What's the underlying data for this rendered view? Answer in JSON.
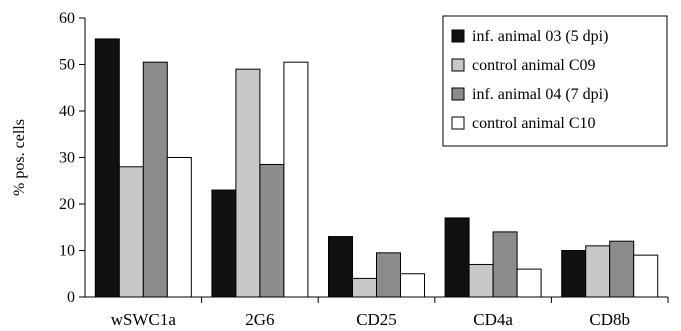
{
  "chart_data": {
    "type": "bar",
    "ylabel": "% pos. cells",
    "xlabel": "",
    "ylim": [
      0,
      60
    ],
    "yticks": [
      0,
      10,
      20,
      30,
      40,
      50,
      60
    ],
    "grid": false,
    "legend_position": "top-right",
    "categories": [
      "wSWC1a",
      "2G6",
      "CD25",
      "CD4a",
      "CD8b"
    ],
    "series": [
      {
        "name": "inf. animal 03 (5 dpi)",
        "color": "#111111",
        "values": [
          55.5,
          23,
          13,
          17,
          10
        ]
      },
      {
        "name": "control animal C09",
        "color": "#c8c8c8",
        "values": [
          28,
          49,
          4,
          7,
          11
        ]
      },
      {
        "name": "inf. animal 04 (7 dpi)",
        "color": "#8c8c8c",
        "values": [
          50.5,
          28.5,
          9.5,
          14,
          12
        ]
      },
      {
        "name": "control animal C10",
        "color": "#ffffff",
        "values": [
          30,
          50.5,
          5,
          6,
          9
        ]
      }
    ]
  }
}
